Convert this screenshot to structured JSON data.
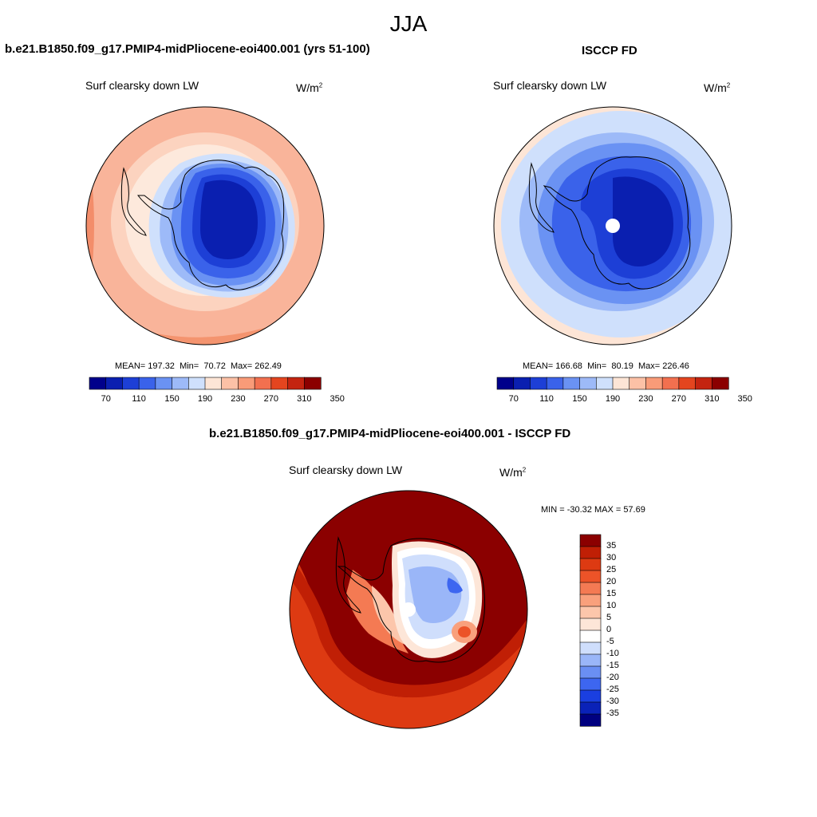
{
  "season": "JJA",
  "colors": {
    "abs_levels": [
      "#00008b",
      "#0a1fb0",
      "#1d3fd6",
      "#3a62ea",
      "#6a92f3",
      "#9dbaf8",
      "#cfe0fc",
      "#fde5d6",
      "#fcc1a6",
      "#f99b78",
      "#f2704f",
      "#e4451f",
      "#c42410",
      "#8b0000"
    ],
    "diff_levels": [
      "#000080",
      "#0a22b8",
      "#1a3fe0",
      "#3d66f0",
      "#6a8ff3",
      "#9ab6f8",
      "#cfdefc",
      "#ffffff",
      "#fde6d8",
      "#fcc6ab",
      "#f9a07c",
      "#f47a53",
      "#ec5328",
      "#dd3a12",
      "#c01f05",
      "#8b0000"
    ]
  },
  "panels": {
    "top_left": {
      "title": "b.e21.B1850.f09_g17.PMIP4-midPliocene-eoi400.001 (yrs 51-100)",
      "varname": "Surf clearsky down LW",
      "units": "W/m",
      "units_sup": "2",
      "mean_label": "MEAN=",
      "mean": "197.32",
      "min_label": "Min=",
      "min": "70.72",
      "max_label": "Max=",
      "max": "262.49"
    },
    "top_right": {
      "title": "ISCCP FD",
      "varname": "Surf clearsky down LW",
      "units": "W/m",
      "units_sup": "2",
      "mean_label": "MEAN=",
      "mean": "166.68",
      "min_label": "Min=",
      "min": "80.19",
      "max_label": "Max=",
      "max": "226.46"
    },
    "bottom": {
      "title": "b.e21.B1850.f09_g17.PMIP4-midPliocene-eoi400.001 - ISCCP FD",
      "varname": "Surf clearsky down LW",
      "units": "W/m",
      "units_sup": "2",
      "minmax_label": "MIN = -30.32 MAX =  57.69"
    }
  },
  "chart_data": [
    {
      "type": "heatmap",
      "title": "b.e21.B1850.f09_g17.PMIP4-midPliocene-eoi400.001 (yrs 51-100)",
      "projection": "south polar stereographic",
      "variable": "Surf clearsky down LW",
      "units": "W/m2",
      "stats": {
        "mean": 197.32,
        "min": 70.72,
        "max": 262.49
      },
      "contour_levels": [
        70,
        90,
        110,
        130,
        150,
        170,
        190,
        210,
        230,
        250,
        270,
        290,
        310,
        330,
        350
      ],
      "colorbar_tick_labels": [
        "70",
        "110",
        "150",
        "190",
        "230",
        "270",
        "310",
        "350"
      ]
    },
    {
      "type": "heatmap",
      "title": "ISCCP FD",
      "projection": "south polar stereographic",
      "variable": "Surf clearsky down LW",
      "units": "W/m2",
      "stats": {
        "mean": 166.68,
        "min": 80.19,
        "max": 226.46
      },
      "contour_levels": [
        70,
        90,
        110,
        130,
        150,
        170,
        190,
        210,
        230,
        250,
        270,
        290,
        310,
        330,
        350
      ],
      "colorbar_tick_labels": [
        "70",
        "110",
        "150",
        "190",
        "230",
        "270",
        "310",
        "350"
      ]
    },
    {
      "type": "heatmap",
      "title": "b.e21.B1850.f09_g17.PMIP4-midPliocene-eoi400.001 - ISCCP FD",
      "projection": "south polar stereographic",
      "variable": "Surf clearsky down LW",
      "units": "W/m2",
      "stats": {
        "min": -30.32,
        "max": 57.69
      },
      "contour_levels": [
        -35,
        -30,
        -25,
        -20,
        -15,
        -10,
        -5,
        0,
        5,
        10,
        15,
        20,
        25,
        30,
        35
      ],
      "colorbar_tick_labels": [
        "35",
        "30",
        "25",
        "20",
        "15",
        "10",
        "5",
        "0",
        "-5",
        "-10",
        "-15",
        "-20",
        "-25",
        "-30",
        "-35"
      ]
    }
  ]
}
